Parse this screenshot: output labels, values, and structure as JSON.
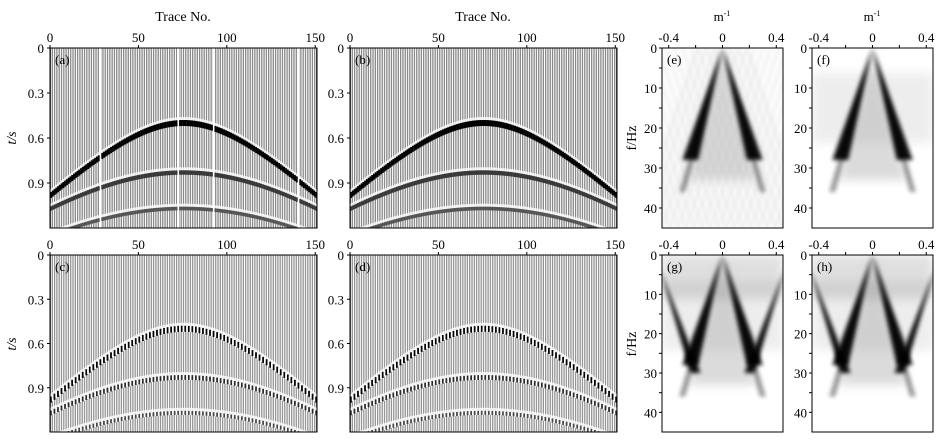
{
  "colors": {
    "trace": "#5a5a5a",
    "event": "#000000",
    "frame": "#000000"
  },
  "chart_data": [
    {
      "type": "seismic-section",
      "panel_label": "(a)",
      "xlabel": "Trace No.",
      "ylabel": "t/s",
      "xticks": [
        "0",
        "50",
        "100",
        "150"
      ],
      "yticks": [
        "0",
        "0.3",
        "0.6",
        "0.9"
      ],
      "xlim": [
        0,
        151
      ],
      "ylim": [
        0,
        1.2
      ],
      "missing_traces": [
        28,
        72,
        92,
        140
      ],
      "events": [
        {
          "t0": 0.5,
          "apex_trace": 75,
          "t_edge": 0.98,
          "amplitude": 1.0
        },
        {
          "t0": 0.83,
          "apex_trace": 75,
          "t_edge": 1.07,
          "amplitude": 0.6
        },
        {
          "t0": 1.07,
          "apex_trace": 75,
          "t_edge": 1.25,
          "amplitude": 0.4
        }
      ]
    },
    {
      "type": "seismic-section",
      "panel_label": "(b)",
      "xlabel": "Trace No.",
      "ylabel": "",
      "xticks": [
        "0",
        "50",
        "100",
        "150"
      ],
      "yticks": [
        "0",
        "0.3",
        "0.6",
        "0.9"
      ],
      "xlim": [
        0,
        151
      ],
      "ylim": [
        0,
        1.2
      ],
      "missing_traces": [],
      "events": [
        {
          "t0": 0.5,
          "apex_trace": 75,
          "t_edge": 0.98,
          "amplitude": 1.0
        },
        {
          "t0": 0.83,
          "apex_trace": 75,
          "t_edge": 1.07,
          "amplitude": 0.6
        },
        {
          "t0": 1.07,
          "apex_trace": 75,
          "t_edge": 1.25,
          "amplitude": 0.4
        }
      ]
    },
    {
      "type": "seismic-section",
      "panel_label": "(c)",
      "xlabel": "",
      "ylabel": "t/s",
      "xticks": [
        "0",
        "50",
        "100",
        "150"
      ],
      "yticks": [
        "0",
        "0.3",
        "0.6",
        "0.9"
      ],
      "xlim": [
        0,
        151
      ],
      "ylim": [
        0,
        1.2
      ],
      "missing_traces": [],
      "sparse": true,
      "events": [
        {
          "t0": 0.5,
          "apex_trace": 75,
          "t_edge": 0.98,
          "amplitude": 1.0
        },
        {
          "t0": 0.83,
          "apex_trace": 75,
          "t_edge": 1.07,
          "amplitude": 0.7
        },
        {
          "t0": 1.07,
          "apex_trace": 75,
          "t_edge": 1.25,
          "amplitude": 0.5
        }
      ]
    },
    {
      "type": "seismic-section",
      "panel_label": "(d)",
      "xlabel": "",
      "ylabel": "",
      "xticks": [
        "0",
        "50",
        "100",
        "150"
      ],
      "yticks": [
        "0",
        "0.3",
        "0.6",
        "0.9"
      ],
      "xlim": [
        0,
        151
      ],
      "ylim": [
        0,
        1.2
      ],
      "missing_traces": [],
      "sparse": true,
      "events": [
        {
          "t0": 0.5,
          "apex_trace": 75,
          "t_edge": 0.98,
          "amplitude": 1.0
        },
        {
          "t0": 0.83,
          "apex_trace": 75,
          "t_edge": 1.07,
          "amplitude": 0.7
        },
        {
          "t0": 1.07,
          "apex_trace": 75,
          "t_edge": 1.25,
          "amplitude": 0.5
        }
      ]
    },
    {
      "type": "fk-spectrum",
      "panel_label": "(e)",
      "xlabel": "m-1",
      "ylabel": "f/Hz",
      "xticks": [
        "-0.4",
        "0",
        "0.4"
      ],
      "yticks": [
        "0",
        "10",
        "20",
        "30",
        "40"
      ],
      "xlim": [
        -0.45,
        0.45
      ],
      "ylim": [
        0,
        45
      ],
      "aliased": false,
      "noise": 0.35
    },
    {
      "type": "fk-spectrum",
      "panel_label": "(f)",
      "xlabel": "m-1",
      "ylabel": "",
      "xticks": [
        "-0.4",
        "0",
        "0.4"
      ],
      "yticks": [
        "0",
        "10",
        "20",
        "30",
        "40"
      ],
      "xlim": [
        -0.45,
        0.45
      ],
      "ylim": [
        0,
        45
      ],
      "aliased": false,
      "noise": 0.1
    },
    {
      "type": "fk-spectrum",
      "panel_label": "(g)",
      "xlabel": "",
      "ylabel": "f/Hz",
      "xticks": [
        "-0.4",
        "0",
        "0.4"
      ],
      "yticks": [
        "0",
        "10",
        "20",
        "30",
        "40"
      ],
      "xlim": [
        -0.45,
        0.45
      ],
      "ylim": [
        0,
        45
      ],
      "aliased": true,
      "noise": 0.05
    },
    {
      "type": "fk-spectrum",
      "panel_label": "(h)",
      "xlabel": "",
      "ylabel": "",
      "xticks": [
        "-0.4",
        "0",
        "0.4"
      ],
      "yticks": [
        "0",
        "10",
        "20",
        "30",
        "40"
      ],
      "xlim": [
        -0.45,
        0.45
      ],
      "ylim": [
        0,
        45
      ],
      "aliased": true,
      "noise": 0.05
    }
  ],
  "labels": {
    "trace_no": "Trace No.",
    "t_s": "t/s",
    "m_inv": "m",
    "m_inv_sup": "-1",
    "f_hz": "f/Hz"
  }
}
